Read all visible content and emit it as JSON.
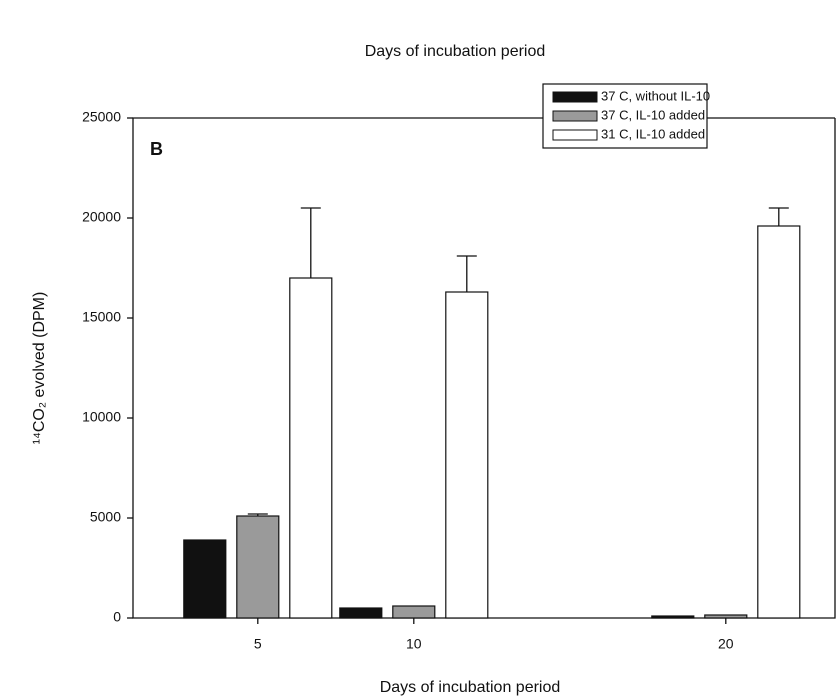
{
  "chart_data": {
    "type": "bar",
    "title": "Days of incubation period",
    "panel_label": "B",
    "x_label": "Days of incubation period",
    "y_label": "¹⁴CO₂ evolved (DPM)",
    "x": [
      5,
      10,
      20
    ],
    "xlim": [
      1,
      23.5
    ],
    "xticks": [
      5,
      10,
      20
    ],
    "ylim": [
      0,
      25000
    ],
    "yticks": [
      0,
      5000,
      10000,
      15000,
      20000,
      25000
    ],
    "grid": false,
    "legend": "top-right",
    "series": [
      {
        "name": "37 C, without IL-10",
        "color": "#111111",
        "values": [
          3900,
          500,
          100
        ],
        "errors": [
          0,
          0,
          0
        ]
      },
      {
        "name": "37 C, IL-10 added",
        "color": "#9a9a9a",
        "values": [
          5100,
          600,
          150
        ],
        "errors": [
          100,
          0,
          0
        ]
      },
      {
        "name": "31 C, IL-10 added",
        "color": "#ffffff",
        "values": [
          17000,
          16300,
          19600
        ],
        "errors": [
          3500,
          1800,
          900
        ]
      }
    ]
  }
}
